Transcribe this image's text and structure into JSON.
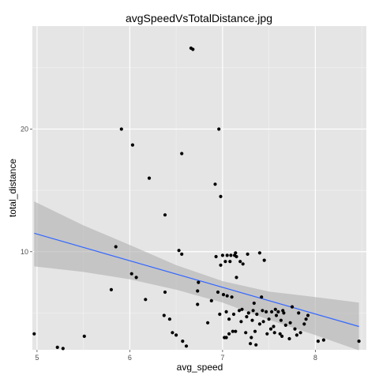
{
  "chart_data": {
    "type": "scatter",
    "title": "avgSpeedVsTotalDistance.jpg",
    "xlabel": "avg_speed",
    "ylabel": "total_distance",
    "xlim": [
      4.95,
      8.55
    ],
    "ylim": [
      2.0,
      28.4
    ],
    "xticks": [
      5,
      6,
      7,
      8
    ],
    "yticks": [
      10,
      20
    ],
    "grid": true,
    "colors": {
      "panel": "#e5e5e5",
      "grid_major": "#ffffff",
      "grid_minor": "#f2f2f2",
      "point": "#000000",
      "fit_line": "#3366ff",
      "band": "#b3b3b3"
    },
    "points": [
      [
        4.97,
        3.3
      ],
      [
        5.22,
        2.2
      ],
      [
        5.28,
        2.1
      ],
      [
        5.51,
        3.1
      ],
      [
        5.8,
        6.9
      ],
      [
        5.85,
        10.4
      ],
      [
        5.91,
        20.0
      ],
      [
        6.02,
        8.2
      ],
      [
        6.03,
        18.7
      ],
      [
        6.07,
        7.9
      ],
      [
        6.17,
        6.1
      ],
      [
        6.21,
        16.0
      ],
      [
        6.37,
        4.8
      ],
      [
        6.38,
        13.0
      ],
      [
        6.38,
        6.7
      ],
      [
        6.43,
        4.5
      ],
      [
        6.46,
        3.4
      ],
      [
        6.5,
        3.2
      ],
      [
        6.53,
        10.1
      ],
      [
        6.56,
        18.0
      ],
      [
        6.56,
        9.8
      ],
      [
        6.57,
        2.7
      ],
      [
        6.61,
        2.3
      ],
      [
        6.66,
        26.6
      ],
      [
        6.68,
        26.5
      ],
      [
        6.73,
        5.7
      ],
      [
        6.73,
        6.8
      ],
      [
        6.74,
        7.5
      ],
      [
        6.84,
        4.2
      ],
      [
        6.88,
        6.0
      ],
      [
        6.92,
        15.5
      ],
      [
        6.93,
        9.6
      ],
      [
        6.95,
        6.7
      ],
      [
        6.96,
        20.0
      ],
      [
        6.97,
        4.9
      ],
      [
        6.98,
        14.5
      ],
      [
        6.98,
        8.9
      ],
      [
        7.0,
        9.7
      ],
      [
        7.01,
        6.5
      ],
      [
        7.02,
        3.0
      ],
      [
        7.03,
        9.2
      ],
      [
        7.04,
        3.0
      ],
      [
        7.04,
        5.1
      ],
      [
        7.05,
        9.7
      ],
      [
        7.05,
        6.4
      ],
      [
        7.07,
        3.3
      ],
      [
        7.07,
        4.5
      ],
      [
        7.08,
        9.2
      ],
      [
        7.09,
        9.7
      ],
      [
        7.1,
        6.3
      ],
      [
        7.11,
        3.5
      ],
      [
        7.12,
        4.9
      ],
      [
        7.13,
        9.7
      ],
      [
        7.14,
        9.9
      ],
      [
        7.14,
        3.5
      ],
      [
        7.15,
        7.9
      ],
      [
        7.15,
        9.6
      ],
      [
        7.18,
        5.2
      ],
      [
        7.19,
        9.2
      ],
      [
        7.2,
        4.3
      ],
      [
        7.21,
        5.3
      ],
      [
        7.22,
        9.0
      ],
      [
        7.25,
        3.4
      ],
      [
        7.26,
        4.7
      ],
      [
        7.27,
        9.8
      ],
      [
        7.28,
        5.0
      ],
      [
        7.3,
        2.5
      ],
      [
        7.31,
        3.0
      ],
      [
        7.32,
        4.4
      ],
      [
        7.33,
        5.2
      ],
      [
        7.34,
        5.8
      ],
      [
        7.35,
        3.5
      ],
      [
        7.36,
        2.4
      ],
      [
        7.37,
        4.9
      ],
      [
        7.4,
        9.9
      ],
      [
        7.4,
        4.1
      ],
      [
        7.42,
        6.3
      ],
      [
        7.43,
        5.2
      ],
      [
        7.44,
        4.3
      ],
      [
        7.45,
        9.3
      ],
      [
        7.47,
        5.1
      ],
      [
        7.48,
        3.3
      ],
      [
        7.5,
        4.5
      ],
      [
        7.52,
        3.7
      ],
      [
        7.53,
        5.1
      ],
      [
        7.55,
        3.9
      ],
      [
        7.56,
        3.4
      ],
      [
        7.57,
        5.3
      ],
      [
        7.58,
        4.8
      ],
      [
        7.6,
        5.1
      ],
      [
        7.62,
        3.3
      ],
      [
        7.63,
        4.4
      ],
      [
        7.64,
        3.1
      ],
      [
        7.65,
        5.2
      ],
      [
        7.66,
        5.0
      ],
      [
        7.68,
        4.0
      ],
      [
        7.72,
        2.9
      ],
      [
        7.73,
        4.2
      ],
      [
        7.75,
        5.5
      ],
      [
        7.78,
        3.7
      ],
      [
        7.8,
        3.2
      ],
      [
        7.82,
        5.0
      ],
      [
        7.84,
        3.4
      ],
      [
        7.88,
        4.1
      ],
      [
        7.9,
        4.5
      ],
      [
        7.92,
        4.8
      ],
      [
        8.03,
        2.7
      ],
      [
        8.09,
        2.8
      ],
      [
        8.47,
        2.7
      ]
    ],
    "fit": {
      "x": [
        4.97,
        8.47
      ],
      "y": [
        11.5,
        3.9
      ]
    },
    "confidence_band": {
      "x": [
        4.97,
        5.5,
        6.0,
        6.5,
        7.0,
        7.5,
        8.0,
        8.47
      ],
      "upper": [
        14.1,
        12.15,
        10.55,
        8.9,
        7.6,
        6.75,
        6.3,
        5.85
      ],
      "lower": [
        8.8,
        8.35,
        7.75,
        6.9,
        5.85,
        4.45,
        3.2,
        1.95
      ]
    }
  }
}
